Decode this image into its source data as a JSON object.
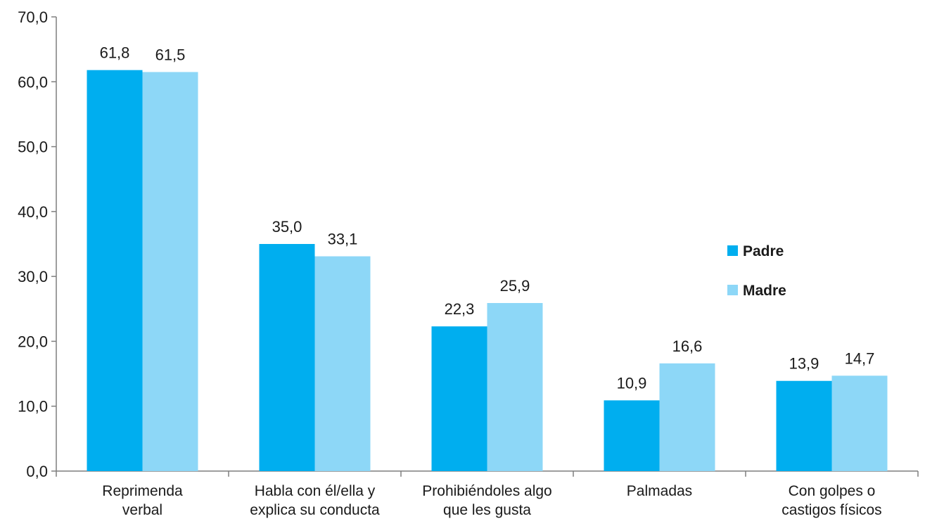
{
  "chart_data": {
    "type": "bar",
    "title": "",
    "xlabel": "",
    "ylabel": "",
    "ylim": [
      0,
      70
    ],
    "ytick_step": 10,
    "ytick_labels": [
      "0,0",
      "10,0",
      "20,0",
      "30,0",
      "40,0",
      "50,0",
      "60,0",
      "70,0"
    ],
    "grid": false,
    "legend_position": "right",
    "categories": [
      [
        "Reprimenda",
        "verbal"
      ],
      [
        "Habla con él/ella y",
        "explica su conducta"
      ],
      [
        "Prohibiéndoles algo",
        "que les gusta"
      ],
      [
        "Palmadas"
      ],
      [
        "Con golpes o",
        "castigos físicos"
      ]
    ],
    "series": [
      {
        "name": "Padre",
        "color": "#00aeef",
        "values": [
          61.8,
          35.0,
          22.3,
          10.9,
          13.9
        ],
        "labels": [
          "61,8",
          "35,0",
          "22,3",
          "10,9",
          "13,9"
        ]
      },
      {
        "name": "Madre",
        "color": "#8dd7f7",
        "values": [
          61.5,
          33.1,
          25.9,
          16.6,
          14.7
        ],
        "labels": [
          "61,5",
          "33,1",
          "25,9",
          "16,6",
          "14,7"
        ]
      }
    ]
  }
}
